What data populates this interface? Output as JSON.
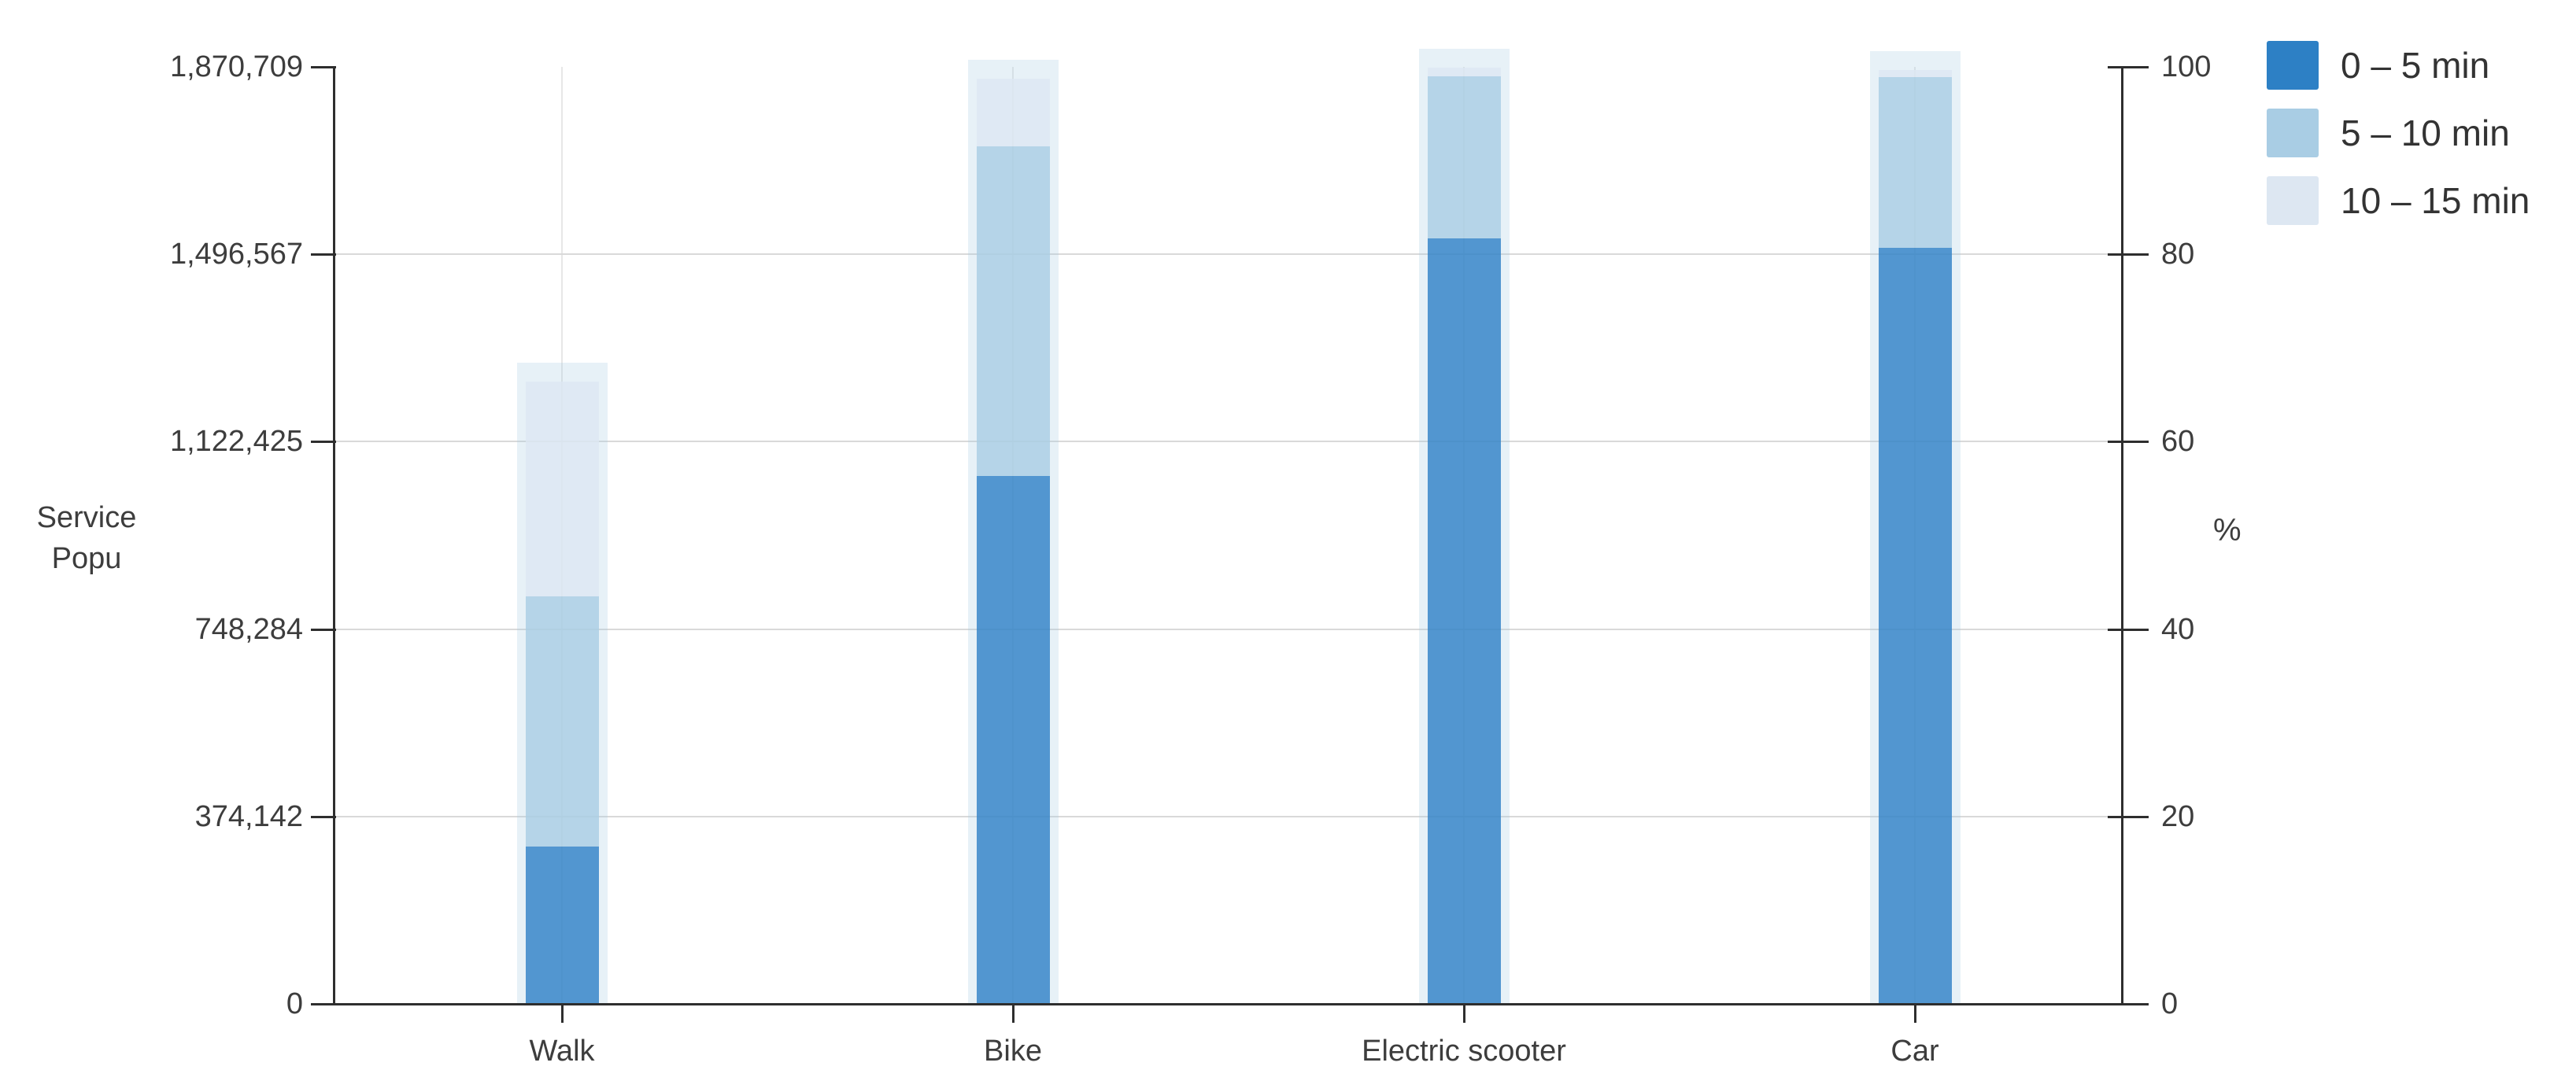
{
  "chart_data": {
    "type": "bar",
    "variant": "stacked-columns-dual-axis",
    "title": "",
    "categories": [
      "Walk",
      "Bike",
      "Electric scooter",
      "Car"
    ],
    "series": [
      {
        "name": "0 – 5 min",
        "color": "#2d80c5",
        "values_percent": [
          16.8,
          56.3,
          81.7,
          80.7
        ]
      },
      {
        "name": "5 – 10 min",
        "color": "#a9cde4",
        "values_percent": [
          26.7,
          35.2,
          17.3,
          18.2
        ]
      },
      {
        "name": "10 – 15 min",
        "color": "#dde7f2",
        "values_percent": [
          22.9,
          7.2,
          0.9,
          0.8
        ]
      }
    ],
    "cumulative_percent": {
      "Walk": [
        16.8,
        43.5,
        66.4
      ],
      "Bike": [
        56.3,
        91.5,
        98.7
      ],
      "Electric scooter": [
        81.7,
        99.0,
        99.9
      ],
      "Car": [
        80.7,
        98.9,
        99.7
      ]
    },
    "left_axis": {
      "title_line1": "Service",
      "title_line2": "Popu",
      "tick_labels": [
        "1,870,709",
        "1,496,567",
        "1,122,425",
        "748,284",
        "374,142",
        "0"
      ],
      "range": [
        0,
        1870709
      ]
    },
    "right_axis": {
      "title": "%",
      "tick_labels": [
        "100",
        "80",
        "60",
        "40",
        "20",
        "0"
      ],
      "range": [
        0,
        100
      ]
    },
    "legend_position": "top-right",
    "grid": {
      "horizontal_percent": [
        20,
        40,
        60,
        80
      ],
      "vertical_at_categories": true
    },
    "background": "#ffffff"
  }
}
